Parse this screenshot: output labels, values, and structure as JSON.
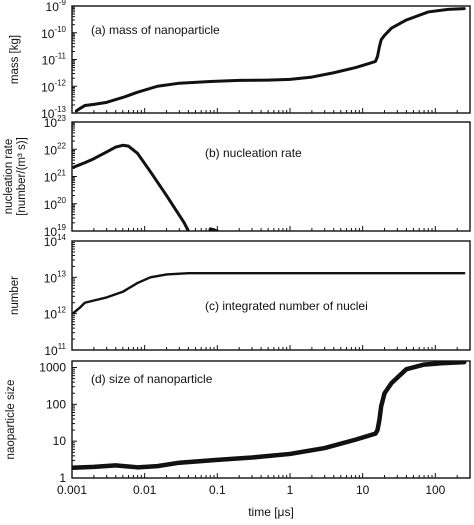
{
  "chart_data": [
    {
      "type": "line",
      "annotation": "(a) mass of nanoparticle",
      "ylabel": "mass [kg]",
      "xlabel": "",
      "xscale": "log",
      "yscale": "log",
      "xlim": [
        0.001,
        300
      ],
      "ylim": [
        1e-13,
        1e-09
      ],
      "ytick_labels": [
        {
          "value": 1e-09,
          "base": "10",
          "exp": "-9"
        },
        {
          "value": 1e-10,
          "base": "10",
          "exp": "-10"
        },
        {
          "value": 1e-11,
          "base": "10",
          "exp": "-11"
        },
        {
          "value": 1e-12,
          "base": "10",
          "exp": "-12"
        },
        {
          "value": 1e-13,
          "base": "10",
          "exp": "-13"
        }
      ],
      "stroke_width": 3,
      "x": [
        0.00115,
        0.0013,
        0.0015,
        0.002,
        0.003,
        0.005,
        0.008,
        0.015,
        0.03,
        0.08,
        0.2,
        0.5,
        1,
        2,
        4,
        8,
        12,
        15,
        16,
        17,
        18,
        20,
        25,
        40,
        80,
        150,
        250
      ],
      "y": [
        1.2e-13,
        1.5e-13,
        1.9e-13,
        2.1e-13,
        2.5e-13,
        3.8e-13,
        6e-13,
        1e-12,
        1.3e-12,
        1.5e-12,
        1.65e-12,
        1.7e-12,
        1.8e-12,
        2.2e-12,
        3.2e-12,
        5e-12,
        7e-12,
        8.5e-12,
        1.3e-11,
        3e-11,
        5.5e-11,
        8e-11,
        1.5e-10,
        3e-10,
        6e-10,
        7.5e-10,
        8e-10
      ]
    },
    {
      "type": "line",
      "annotation": "(b) nucleation rate",
      "ylabel_lines": [
        "nucleation rate",
        "[number/(m³ s)]"
      ],
      "xlabel": "",
      "xscale": "log",
      "yscale": "log",
      "xlim": [
        0.001,
        300
      ],
      "ylim": [
        1e+19,
        1e+23
      ],
      "ytick_labels": [
        {
          "value": 1e+23,
          "base": "10",
          "exp": "23"
        },
        {
          "value": 1e+22,
          "base": "10",
          "exp": "22"
        },
        {
          "value": 1e+21,
          "base": "10",
          "exp": "21"
        },
        {
          "value": 1e+20,
          "base": "10",
          "exp": "20"
        },
        {
          "value": 1e+19,
          "base": "10",
          "exp": "19"
        }
      ],
      "stroke_width": 3,
      "x": [
        0.00105,
        0.0015,
        0.002,
        0.003,
        0.004,
        0.005,
        0.006,
        0.008,
        0.012,
        0.02,
        0.035,
        0.05,
        0.065,
        0.08,
        0.1
      ],
      "y": [
        2.2e+21,
        3.2e+21,
        4.5e+21,
        8e+21,
        1.2e+22,
        1.4e+22,
        1.3e+22,
        7e+21,
        1.5e+21,
        2e+20,
        2e+19,
        3e+18,
        1e+18,
        1.2e+19,
        1e+19
      ]
    },
    {
      "type": "line",
      "annotation": "(c) integrated number of nuclei",
      "ylabel": "number",
      "xlabel": "",
      "xscale": "log",
      "yscale": "log",
      "xlim": [
        0.001,
        300
      ],
      "ylim": [
        100000000000.0,
        100000000000000.0
      ],
      "ytick_labels": [
        {
          "value": 100000000000000.0,
          "base": "10",
          "exp": "14"
        },
        {
          "value": 10000000000000.0,
          "base": "10",
          "exp": "13"
        },
        {
          "value": 1000000000000.0,
          "base": "10",
          "exp": "12"
        },
        {
          "value": 100000000000.0,
          "base": "10",
          "exp": "11"
        }
      ],
      "stroke_width": 2.4,
      "x": [
        0.00105,
        0.0013,
        0.0015,
        0.002,
        0.003,
        0.005,
        0.008,
        0.012,
        0.02,
        0.04,
        0.08,
        0.2,
        1,
        10,
        100,
        250
      ],
      "y": [
        1050000000000.0,
        1500000000000.0,
        2000000000000.0,
        2300000000000.0,
        2800000000000.0,
        4000000000000.0,
        7000000000000.0,
        10000000000000.0,
        12000000000000.0,
        13000000000000.0,
        13000000000000.0,
        13000000000000.0,
        13000000000000.0,
        13000000000000.0,
        13000000000000.0,
        13000000000000.0
      ]
    },
    {
      "type": "line",
      "annotation": "(d) size of nanoparticle",
      "ylabel": "naoparticle size",
      "xlabel": "time [μs]",
      "xscale": "log",
      "yscale": "log",
      "xlim": [
        0.001,
        300
      ],
      "ylim": [
        1,
        1500
      ],
      "ytick_labels": [
        {
          "value": 1000,
          "text": "1000"
        },
        {
          "value": 100,
          "text": "100"
        },
        {
          "value": 10,
          "text": "10"
        },
        {
          "value": 1,
          "text": "1"
        }
      ],
      "xtick_labels": [
        "0.001",
        "0.01",
        "0.1",
        "1",
        "10",
        "100"
      ],
      "stroke_width": 4.5,
      "x": [
        0.001,
        0.002,
        0.004,
        0.008,
        0.015,
        0.03,
        0.1,
        0.3,
        1,
        3,
        8,
        12,
        15,
        16,
        17,
        18,
        20,
        25,
        40,
        70,
        120,
        250
      ],
      "y": [
        1.9,
        2.0,
        2.2,
        1.95,
        2.1,
        2.6,
        3.1,
        3.6,
        4.5,
        6.5,
        11,
        14,
        16,
        20,
        38,
        90,
        200,
        380,
        900,
        1200,
        1300,
        1400
      ]
    }
  ]
}
